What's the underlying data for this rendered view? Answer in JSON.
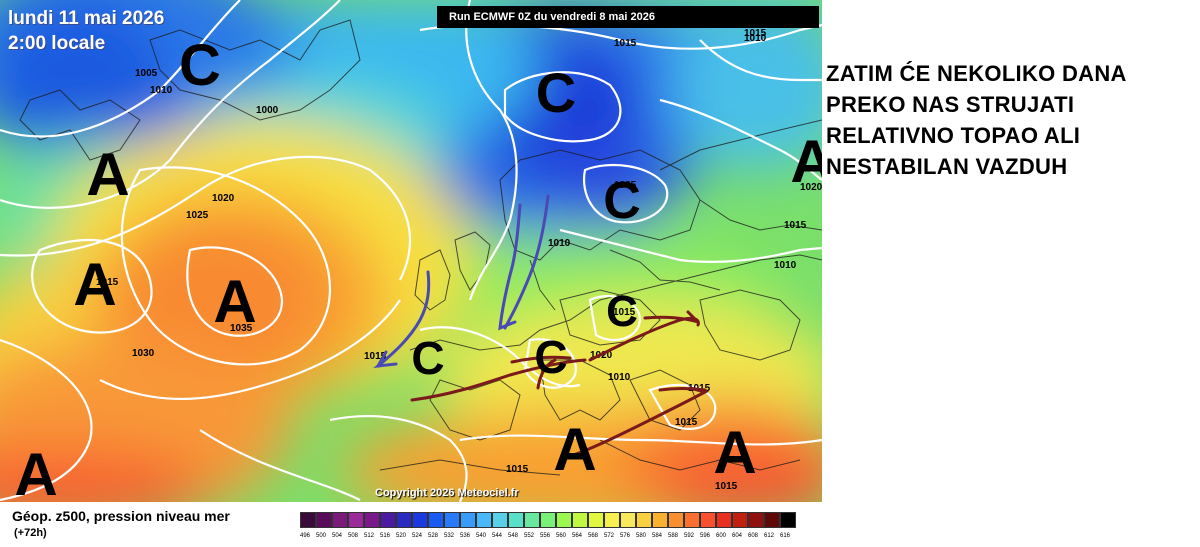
{
  "map": {
    "date": "lundi 11 mai 2026",
    "time": "2:00 locale",
    "run": "Run ECMWF 0Z du vendredi 8 mai 2026",
    "copyright": "Copyright 2026 Meteociel.fr",
    "lows_label": "C",
    "highs_label": "A",
    "lows": [
      {
        "name": "low-greenland"
      },
      {
        "name": "low-norway"
      },
      {
        "name": "low-baltic"
      },
      {
        "name": "low-biscay"
      },
      {
        "name": "low-alps"
      },
      {
        "name": "low-central-europe"
      }
    ],
    "highs": [
      {
        "name": "high-labrador"
      },
      {
        "name": "high-west-atlantic"
      },
      {
        "name": "high-azores"
      },
      {
        "name": "high-southwest"
      },
      {
        "name": "high-russia"
      },
      {
        "name": "high-mediterranean"
      },
      {
        "name": "high-greece"
      }
    ],
    "isobar_labels": [
      "1005",
      "1010",
      "1000",
      "1020",
      "1025",
      "1035",
      "1030",
      "1015",
      "1015",
      "1010",
      "1020",
      "1015",
      "1015",
      "1010",
      "1010",
      "1015",
      "1015",
      "1020",
      "1015",
      "1015",
      "1015",
      "1010",
      "1005"
    ],
    "colors": {
      "land_outline": "#1a1a1a",
      "isobar": "#ffffff",
      "arrow_blue": "#4a4ab5",
      "arrow_red": "#7a1a1a"
    }
  },
  "commentary": [
    "ZATIM ĆE NEKOLIKO DANA",
    "PREKO NAS STRUJATI",
    "RELATIVNO TOPAO ALI",
    "NESTABILAN VAZDUH"
  ],
  "legend": {
    "title": "Géop. z500, pression niveau mer",
    "subtitle": "(+72h)",
    "values": [
      "496",
      "500",
      "504",
      "508",
      "512",
      "516",
      "520",
      "524",
      "528",
      "532",
      "536",
      "540",
      "544",
      "548",
      "552",
      "556",
      "560",
      "564",
      "568",
      "572",
      "576",
      "580",
      "584",
      "588",
      "592",
      "596",
      "600",
      "604",
      "608",
      "612",
      "616"
    ],
    "colors": [
      "#3a0a3a",
      "#5a0a5a",
      "#7a1a7a",
      "#9a2a9a",
      "#7a1a8a",
      "#4a1aa0",
      "#2a2ac0",
      "#1a3ae0",
      "#1a5af0",
      "#2a7af8",
      "#3a9af8",
      "#4ab8f8",
      "#5ad0e8",
      "#5ae0c8",
      "#6ae8a0",
      "#7af078",
      "#9af850",
      "#c0f840",
      "#e0f840",
      "#f8f050",
      "#f8e860",
      "#f8d040",
      "#f8b030",
      "#f89030",
      "#f87030",
      "#f85030",
      "#e83020",
      "#c02010",
      "#901010",
      "#600808",
      "#000000"
    ]
  }
}
